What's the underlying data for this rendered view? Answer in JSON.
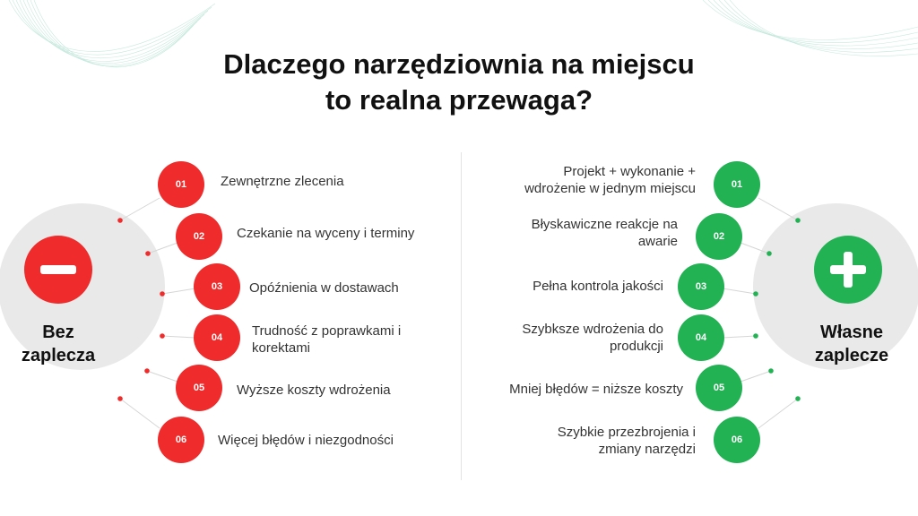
{
  "title_lines": [
    "Dlaczego narzędziownia na miejscu",
    "to realna przewaga?"
  ],
  "left_group": {
    "label_lines": [
      "Bez",
      "zaplecza"
    ],
    "icon": "minus-icon",
    "color": "#ef2b2b",
    "items": [
      {
        "number": "01",
        "lines": [
          "Zewnętrzne zlecenia"
        ]
      },
      {
        "number": "02",
        "lines": [
          "Czekanie na wyceny i terminy"
        ]
      },
      {
        "number": "03",
        "lines": [
          "Opóźnienia w dostawach"
        ]
      },
      {
        "number": "04",
        "lines": [
          "Trudność z poprawkami i",
          "korektami"
        ]
      },
      {
        "number": "05",
        "lines": [
          "Wyższe koszty wdrożenia"
        ]
      },
      {
        "number": "06",
        "lines": [
          "Więcej błędów i niezgodności"
        ]
      }
    ]
  },
  "right_group": {
    "label_lines": [
      "Własne",
      "zaplecze"
    ],
    "icon": "plus-icon",
    "color": "#22b254",
    "items": [
      {
        "number": "01",
        "lines": [
          "Projekt + wykonanie +",
          "wdrożenie w jednym miejscu"
        ]
      },
      {
        "number": "02",
        "lines": [
          "Błyskawiczne reakcje na",
          "awarie"
        ]
      },
      {
        "number": "03",
        "lines": [
          "Pełna kontrola jakości"
        ]
      },
      {
        "number": "04",
        "lines": [
          "Szybksze wdrożenia do",
          "produkcji"
        ]
      },
      {
        "number": "05",
        "lines": [
          "Mniej błędów = niższe koszty"
        ]
      },
      {
        "number": "06",
        "lines": [
          "Szybkie przezbrojenia i",
          "zmiany narzędzi"
        ]
      }
    ]
  }
}
